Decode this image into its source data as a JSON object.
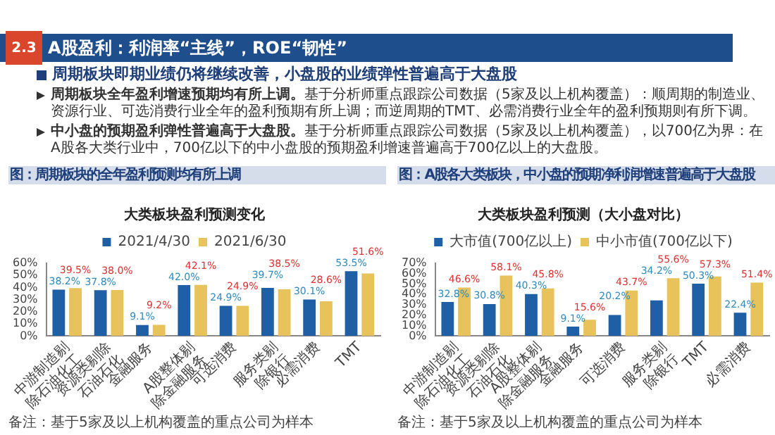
{
  "chart_data": [
    {
      "type": "other",
      "title": "A股盈利：利润率“主线”，ROE“韧性”",
      "subtitle": "周期板块即期业绩仍将继续改善，小盘股的业绩弹性普遍高于大盘股",
      "annotations": [
        "2.3",
        "周期板块全年盈利增速预期均有所上调。",
        "基于分析师重点跟踪公司数据（5家及以上机构覆盖）：顺周期的制造业、资源行业、可选消费行业全年的盈利预期有所上调；而逆周期的TMT、必需消费行业全年的盈利预期则有所下调。",
        "中小盘的预期盈利弹性普遍高于大盘股。",
        "基于分析师重点跟踪公司数据（5家及以上机构覆盖），以700亿为界：在A股各大类行业中，700亿以下的中小盘股的预期盈利增速普遍高于700亿以上的大盘股。"
      ]
    },
    {
      "type": "bar",
      "title": "图：周期板块的全年盈利预测均有所上调",
      "subtitle": "大类板块盈利预测变化",
      "categories": [
        "中游制造剔除石油化工",
        "资源类剔除石油石化",
        "金融服务",
        "A股整体剔除金融服务",
        "可选消费",
        "服务类剔除银行",
        "必需消费",
        "TMT"
      ],
      "series": [
        {
          "name": "2021/4/30",
          "color": "#1f5fa6",
          "values": [
            38.2,
            37.8,
            9.1,
            42.0,
            24.9,
            39.7,
            30.1,
            53.5
          ],
          "value_labels": [
            "38.2%",
            "37.8%",
            "9.1%",
            "42.0%",
            "24.9%",
            "39.7%",
            "30.1%",
            "53.5%"
          ]
        },
        {
          "name": "2021/6/30",
          "color": "#e8c25a",
          "values": [
            39.5,
            38.0,
            9.2,
            42.1,
            24.9,
            38.5,
            28.6,
            51.6
          ],
          "value_labels": [
            "39.5%",
            "38.0%",
            "9.2%",
            "42.1%",
            "24.9%",
            "38.5%",
            "28.6%",
            "51.6%"
          ]
        }
      ],
      "ylim": [
        0,
        60
      ],
      "yticks": [
        {
          "value": 0,
          "label": "0%"
        },
        {
          "value": 10,
          "label": "10%"
        },
        {
          "value": 20,
          "label": "20%"
        },
        {
          "value": 30,
          "label": "30%"
        },
        {
          "value": 40,
          "label": "40%"
        },
        {
          "value": 50,
          "label": "50%"
        },
        {
          "value": 60,
          "label": "60%"
        }
      ],
      "legend": "top",
      "annotations": [
        "备注：基于5家及以上机构覆盖的重点公司为样本"
      ]
    },
    {
      "type": "bar",
      "title": "图：A股各大类板块，中小盘的预期净利润增速普遍高于大盘股",
      "subtitle": "大类板块盈利预测（大小盘对比）",
      "categories": [
        "中游制造剔除石油化工",
        "资源类剔除石油石化",
        "A股整体剔除金融服务",
        "金融服务",
        "可选消费",
        "服务类剔除银行",
        "TMT",
        "必需消费"
      ],
      "series": [
        {
          "name": "大市值(700亿以上)",
          "color": "#1f5fa6",
          "values": [
            32.8,
            30.8,
            40.3,
            9.1,
            20.2,
            34.2,
            50.3,
            22.4
          ],
          "value_labels": [
            "32.8%",
            "30.8%",
            "40.3%",
            "9.1%",
            "20.2%",
            "34.2%",
            "50.3%",
            "22.4%"
          ]
        },
        {
          "name": "中小市值(700亿以下)",
          "color": "#e8c25a",
          "values": [
            46.6,
            58.1,
            45.8,
            15.6,
            43.7,
            55.6,
            57.3,
            51.4
          ],
          "value_labels": [
            "46.6%",
            "58.1%",
            "45.8%",
            "15.6%",
            "43.7%",
            "55.6%",
            "57.3%",
            "51.4%"
          ]
        }
      ],
      "ylim": [
        0,
        70
      ],
      "yticks": [
        {
          "value": 0,
          "label": "0%"
        },
        {
          "value": 10,
          "label": "10%"
        },
        {
          "value": 20,
          "label": "20%"
        },
        {
          "value": 30,
          "label": "30%"
        },
        {
          "value": 40,
          "label": "40%"
        },
        {
          "value": 50,
          "label": "50%"
        },
        {
          "value": 60,
          "label": "60%"
        },
        {
          "value": 70,
          "label": "70%"
        }
      ],
      "legend": "top",
      "annotations": [
        "备注：基于5家及以上机构覆盖的重点公司为样本"
      ]
    }
  ]
}
